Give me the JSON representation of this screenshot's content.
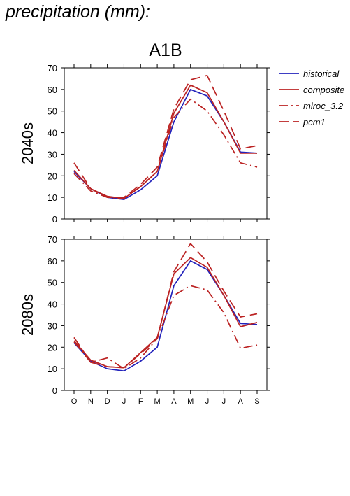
{
  "page_title": "precipitation (mm):",
  "chart_data": {
    "type": "line",
    "title": "A1B",
    "categories": [
      "O",
      "N",
      "D",
      "J",
      "F",
      "M",
      "A",
      "M",
      "J",
      "J",
      "A",
      "S"
    ],
    "ylim": [
      0,
      70
    ],
    "yticks": [
      0,
      10,
      20,
      30,
      40,
      50,
      60,
      70
    ],
    "grid": false,
    "legend_position": "top-right, outside plot",
    "legend": [
      {
        "name": "historical",
        "color": "#2222bb",
        "dash": "solid"
      },
      {
        "name": "composite",
        "color": "#bb2222",
        "dash": "solid"
      },
      {
        "name": "miroc_3.2",
        "color": "#bb2222",
        "dash": "dashdot"
      },
      {
        "name": "pcm1",
        "color": "#bb2222",
        "dash": "dashed"
      }
    ],
    "panels": [
      {
        "label": "2040s",
        "series": [
          {
            "name": "historical",
            "values": [
              22,
              14,
              10,
              9,
              13.5,
              20,
              45,
              60,
              57,
              45,
              31,
              30.5
            ]
          },
          {
            "name": "composite",
            "values": [
              22.5,
              14,
              10.5,
              9.5,
              15,
              22,
              49,
              62,
              58.5,
              45,
              30.5,
              30.5
            ]
          },
          {
            "name": "miroc_3.2",
            "values": [
              21,
              13,
              10,
              9.5,
              15,
              22,
              47,
              55.5,
              50,
              39,
              26,
              24
            ]
          },
          {
            "name": "pcm1",
            "values": [
              26,
              14,
              10,
              10,
              16,
              24,
              51,
              64.5,
              66.5,
              50,
              32.5,
              34
            ]
          }
        ]
      },
      {
        "label": "2080s",
        "series": [
          {
            "name": "historical",
            "values": [
              22,
              13.5,
              10,
              9,
              13.5,
              20,
              48.5,
              60,
              56,
              44,
              31,
              30.5
            ]
          },
          {
            "name": "composite",
            "values": [
              23,
              14,
              11,
              10.5,
              17.5,
              24.5,
              54,
              61.5,
              57,
              44,
              29.5,
              31.5
            ]
          },
          {
            "name": "miroc_3.2",
            "values": [
              22.5,
              13,
              15,
              10,
              15,
              24,
              44,
              48.5,
              46.5,
              36,
              19.5,
              21
            ]
          },
          {
            "name": "pcm1",
            "values": [
              24.5,
              13,
              11,
              10.5,
              17,
              24,
              55,
              68,
              59.5,
              46,
              34,
              35.5
            ]
          }
        ]
      }
    ]
  }
}
